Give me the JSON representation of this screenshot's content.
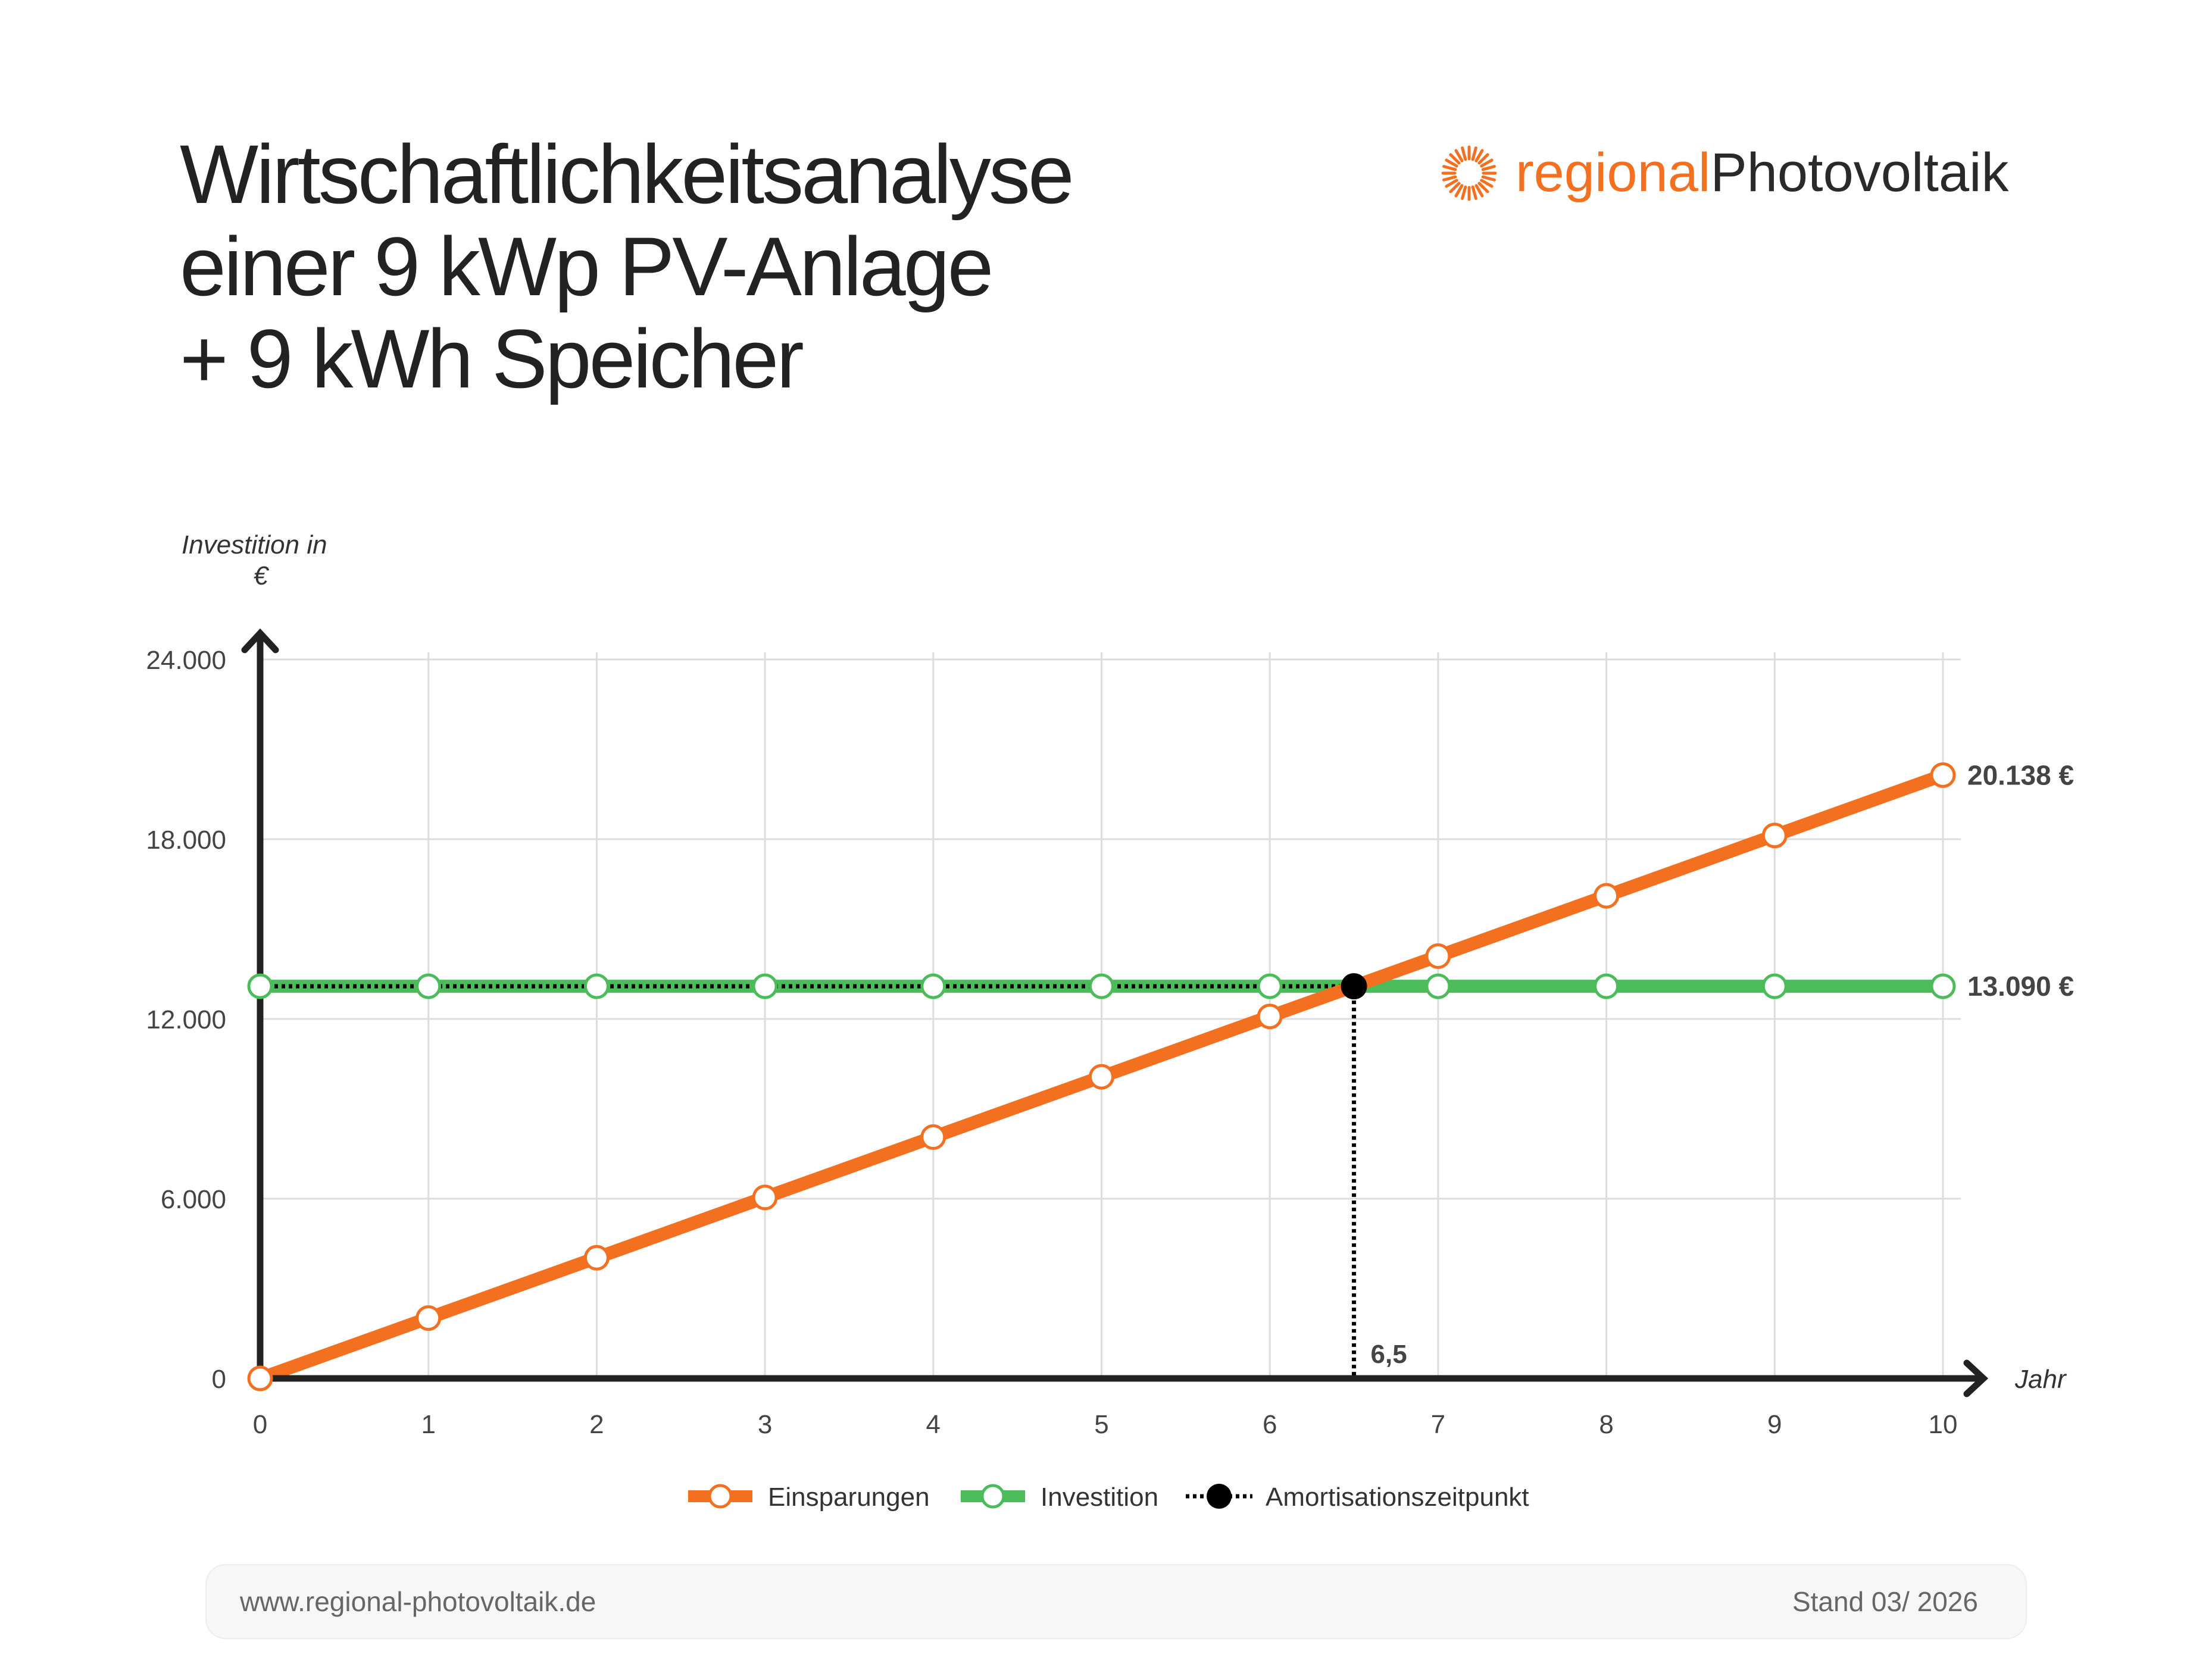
{
  "title": {
    "line1": "Wirtschaftlichkeitsanalyse",
    "line2": "einer 9 kWp PV-Anlage",
    "line3": "+ 9 kWh Speicher"
  },
  "logo": {
    "part1": "regional",
    "part2": "Photovoltaik",
    "icon": "sun-icon",
    "color_accent": "#f37021"
  },
  "footer": {
    "url": "www.regional-photovoltaik.de",
    "stand": "Stand 03/ 2026"
  },
  "chart_data": {
    "type": "line",
    "ylabel_line1": "Investition in",
    "ylabel_line2": "€",
    "xlabel": "Jahr",
    "ylim": [
      0,
      24000
    ],
    "xlim": [
      0,
      10
    ],
    "yticks": [
      0,
      6000,
      12000,
      18000,
      24000
    ],
    "ytick_labels": [
      "0",
      "6.000",
      "12.000",
      "18.000",
      "24.000"
    ],
    "x": [
      0,
      1,
      2,
      3,
      4,
      5,
      6,
      7,
      8,
      9,
      10
    ],
    "xtick_labels": [
      "0",
      "1",
      "2",
      "3",
      "4",
      "5",
      "6",
      "7",
      "8",
      "9",
      "10"
    ],
    "grid": true,
    "legend_position": "bottom-center",
    "series": [
      {
        "name": "Einsparungen",
        "color": "#f37021",
        "values": [
          0,
          2013.8,
          4027.6,
          6041.4,
          8055.2,
          10069,
          12082.8,
          14096.6,
          16110.4,
          18124.2,
          20138
        ],
        "end_label": "20.138 €"
      },
      {
        "name": "Investition",
        "color": "#4cbb5a",
        "values": [
          13090,
          13090,
          13090,
          13090,
          13090,
          13090,
          13090,
          13090,
          13090,
          13090,
          13090
        ],
        "end_label": "13.090 €"
      }
    ],
    "breakeven": {
      "name": "Amortisationszeitpunkt",
      "x": 6.5,
      "y": 13090,
      "label": "6,5",
      "color": "#000000"
    }
  }
}
